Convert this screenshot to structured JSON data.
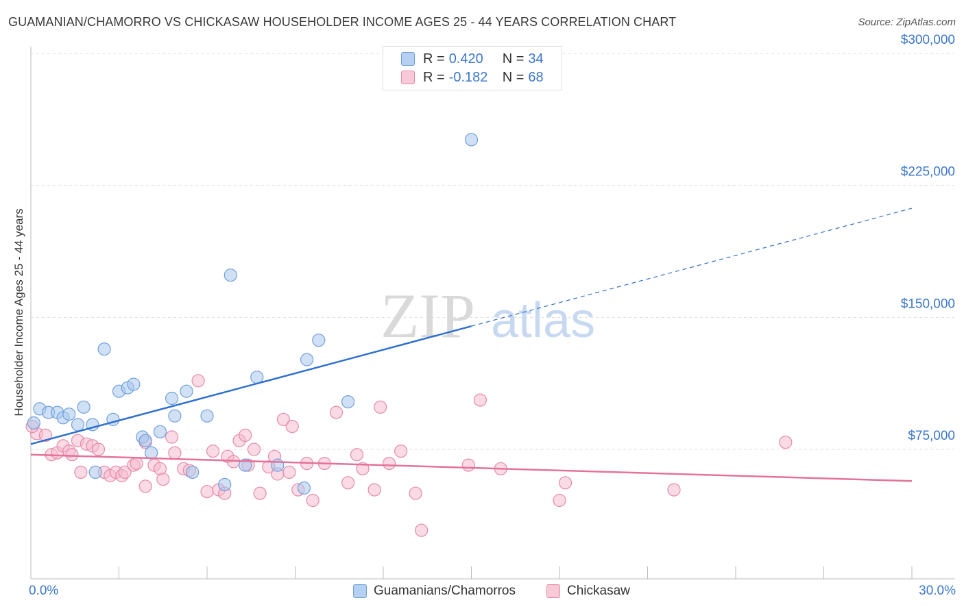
{
  "title": "GUAMANIAN/CHAMORRO VS CHICKASAW HOUSEHOLDER INCOME AGES 25 - 44 YEARS CORRELATION CHART",
  "source": "Source: ZipAtlas.com",
  "watermark": {
    "zip": "ZIP",
    "atlas": "atlas"
  },
  "colors": {
    "blue_fill": "#a9c8ef",
    "blue_stroke": "#6f9fdc",
    "blue_line": "#2e6fcf",
    "pink_fill": "#f6bccd",
    "pink_stroke": "#e68aa8",
    "pink_line": "#e4729a",
    "tick_label": "#3a76cc",
    "grid": "#dddddd"
  },
  "legend": {
    "rows": [
      {
        "r_label": "R =",
        "r_value": "0.420",
        "n_label": "N =",
        "n_value": "34",
        "series": "blue"
      },
      {
        "r_label": "R =",
        "r_value": "-0.182",
        "n_label": "N =",
        "n_value": "68",
        "series": "pink"
      }
    ]
  },
  "bottom_legend": [
    {
      "label": "Guamanians/Chamorros",
      "series": "blue"
    },
    {
      "label": "Chickasaw",
      "series": "pink"
    }
  ],
  "chart_data": {
    "type": "scatter",
    "title": "GUAMANIAN/CHAMORRO VS CHICKASAW HOUSEHOLDER INCOME AGES 25 - 44 YEARS CORRELATION CHART",
    "xlabel": "",
    "ylabel": "Householder Income Ages 25 - 44 years",
    "xlim": [
      0,
      30
    ],
    "ylim": [
      10000,
      315000
    ],
    "x_tick_labels": [
      {
        "value": 0,
        "label": "0.0%"
      },
      {
        "value": 30,
        "label": "30.0%"
      }
    ],
    "y_ticks": [
      {
        "value": 75000,
        "label": "$75,000"
      },
      {
        "value": 150000,
        "label": "$150,000"
      },
      {
        "value": 225000,
        "label": "$225,000"
      },
      {
        "value": 300000,
        "label": "$300,000"
      }
    ],
    "x_minor_ticks": [
      0,
      3,
      6,
      9,
      12,
      15,
      18,
      21,
      24,
      27,
      30
    ],
    "grid": true,
    "legend_position": "top-center",
    "series": [
      {
        "name": "Guamanians/Chamorros",
        "color": "blue",
        "points": [
          [
            0.1,
            90000
          ],
          [
            0.3,
            98000
          ],
          [
            0.6,
            96000
          ],
          [
            0.9,
            96000
          ],
          [
            1.1,
            93000
          ],
          [
            1.3,
            95000
          ],
          [
            1.6,
            89000
          ],
          [
            1.8,
            99000
          ],
          [
            2.1,
            89000
          ],
          [
            2.2,
            62000
          ],
          [
            2.5,
            132000
          ],
          [
            2.8,
            92000
          ],
          [
            3.0,
            108000
          ],
          [
            3.3,
            110000
          ],
          [
            3.5,
            112000
          ],
          [
            3.8,
            82000
          ],
          [
            3.9,
            80000
          ],
          [
            4.1,
            73000
          ],
          [
            4.4,
            85000
          ],
          [
            4.8,
            104000
          ],
          [
            4.9,
            94000
          ],
          [
            5.3,
            108000
          ],
          [
            5.5,
            62000
          ],
          [
            6.0,
            94000
          ],
          [
            6.8,
            174000
          ],
          [
            6.6,
            55000
          ],
          [
            7.3,
            66000
          ],
          [
            7.7,
            116000
          ],
          [
            8.4,
            66000
          ],
          [
            9.3,
            53000
          ],
          [
            9.4,
            126000
          ],
          [
            9.8,
            137000
          ],
          [
            10.8,
            102000
          ],
          [
            15.0,
            251000
          ]
        ],
        "trend": {
          "x": [
            0,
            15
          ],
          "y": [
            78000,
            145000
          ]
        },
        "trend_dashed": {
          "x": [
            15,
            30
          ],
          "y": [
            145000,
            212000
          ]
        }
      },
      {
        "name": "Chickasaw",
        "color": "pink",
        "points": [
          [
            0.2,
            84000
          ],
          [
            0.5,
            83000
          ],
          [
            0.7,
            72000
          ],
          [
            0.9,
            73000
          ],
          [
            1.1,
            77000
          ],
          [
            1.3,
            74000
          ],
          [
            1.4,
            72000
          ],
          [
            1.6,
            80000
          ],
          [
            1.7,
            62000
          ],
          [
            1.9,
            78000
          ],
          [
            2.1,
            77000
          ],
          [
            2.3,
            75000
          ],
          [
            2.5,
            62000
          ],
          [
            2.7,
            60000
          ],
          [
            2.9,
            62000
          ],
          [
            3.1,
            60000
          ],
          [
            3.2,
            62000
          ],
          [
            3.5,
            66000
          ],
          [
            3.6,
            67000
          ],
          [
            3.9,
            79000
          ],
          [
            3.9,
            54000
          ],
          [
            4.2,
            66000
          ],
          [
            4.4,
            64000
          ],
          [
            4.5,
            58000
          ],
          [
            4.8,
            82000
          ],
          [
            4.9,
            73000
          ],
          [
            5.2,
            64000
          ],
          [
            5.4,
            63000
          ],
          [
            5.7,
            114000
          ],
          [
            6.0,
            51000
          ],
          [
            6.2,
            74000
          ],
          [
            6.4,
            52000
          ],
          [
            6.6,
            50000
          ],
          [
            6.7,
            71000
          ],
          [
            6.9,
            68000
          ],
          [
            7.1,
            80000
          ],
          [
            7.3,
            83000
          ],
          [
            7.4,
            66000
          ],
          [
            7.6,
            75000
          ],
          [
            7.8,
            50000
          ],
          [
            8.1,
            65000
          ],
          [
            8.3,
            71000
          ],
          [
            8.4,
            61000
          ],
          [
            8.6,
            92000
          ],
          [
            8.8,
            62000
          ],
          [
            8.9,
            88000
          ],
          [
            9.1,
            52000
          ],
          [
            9.4,
            67000
          ],
          [
            9.6,
            46000
          ],
          [
            10.0,
            67000
          ],
          [
            10.4,
            96000
          ],
          [
            10.8,
            56000
          ],
          [
            11.1,
            72000
          ],
          [
            11.3,
            64000
          ],
          [
            11.7,
            52000
          ],
          [
            11.9,
            99000
          ],
          [
            12.2,
            67000
          ],
          [
            12.6,
            74000
          ],
          [
            13.1,
            50000
          ],
          [
            13.3,
            29000
          ],
          [
            14.9,
            66000
          ],
          [
            15.3,
            103000
          ],
          [
            16.0,
            64000
          ],
          [
            18.0,
            46000
          ],
          [
            18.2,
            56000
          ],
          [
            21.9,
            52000
          ],
          [
            25.7,
            79000
          ],
          [
            0.05,
            88000
          ]
        ],
        "trend": {
          "x": [
            0,
            30
          ],
          "y": [
            72000,
            57000
          ]
        }
      }
    ]
  }
}
